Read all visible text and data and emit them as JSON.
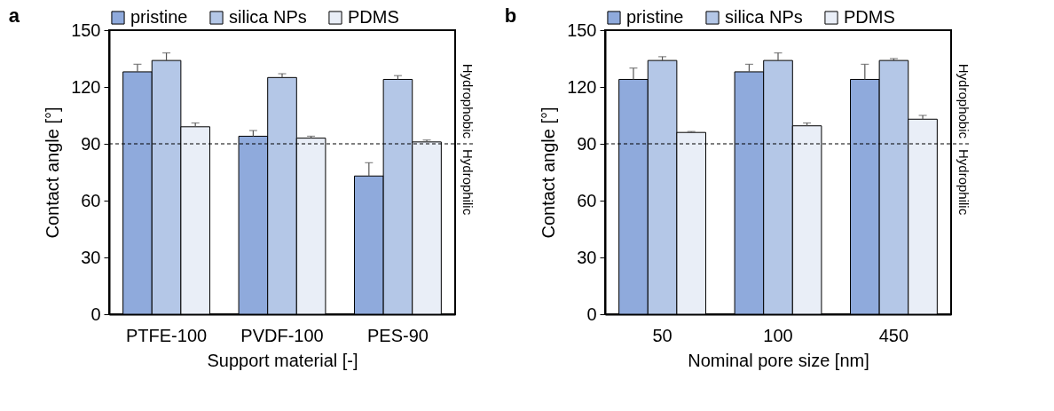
{
  "chart_data": [
    {
      "type": "bar",
      "title": "a",
      "xlabel": "Support material [-]",
      "ylabel": "Contact angle [°]",
      "categories": [
        "PTFE-100",
        "PVDF-100",
        "PES-90"
      ],
      "ylim": [
        0,
        150
      ],
      "yticks": [
        0,
        30,
        60,
        90,
        120,
        150
      ],
      "grid": false,
      "legend": "top",
      "series": [
        {
          "name": "pristine",
          "color": "#8faadc",
          "values": [
            128,
            94,
            73
          ],
          "errors": [
            [
              128,
              132
            ],
            [
              94,
              97
            ],
            [
              73,
              80
            ]
          ]
        },
        {
          "name": "silica NPs",
          "color": "#b4c7e7",
          "values": [
            134,
            125,
            124
          ],
          "errors": [
            [
              134,
              138
            ],
            [
              125,
              127
            ],
            [
              124,
              126
            ]
          ]
        },
        {
          "name": "PDMS",
          "color": "#e9eef7",
          "values": [
            99,
            93,
            91
          ],
          "errors": [
            [
              99,
              101
            ],
            [
              93,
              94
            ],
            [
              91,
              92
            ]
          ]
        }
      ],
      "ref_lines": [
        {
          "axis": "y",
          "value": 90,
          "line_style": "dashed",
          "color": "#000000"
        }
      ],
      "annotations": [
        "Hydrophobic",
        "Hydrophilic"
      ]
    },
    {
      "type": "bar",
      "title": "b",
      "xlabel": "Nominal pore size [nm]",
      "ylabel": "Contact angle [°]",
      "categories": [
        "50",
        "100",
        "450"
      ],
      "ylim": [
        0,
        150
      ],
      "yticks": [
        0,
        30,
        60,
        90,
        120,
        150
      ],
      "grid": false,
      "legend": "top",
      "series": [
        {
          "name": "pristine",
          "color": "#8faadc",
          "values": [
            124,
            128,
            124
          ],
          "errors": [
            [
              124,
              130
            ],
            [
              128,
              132
            ],
            [
              124,
              132
            ]
          ]
        },
        {
          "name": "silica NPs",
          "color": "#b4c7e7",
          "values": [
            134,
            134,
            134
          ],
          "errors": [
            [
              134,
              136
            ],
            [
              134,
              138
            ],
            [
              134,
              135
            ]
          ]
        },
        {
          "name": "PDMS",
          "color": "#e9eef7",
          "values": [
            96,
            99.5,
            103
          ],
          "errors": [
            [
              96,
              96.5
            ],
            [
              99.5,
              101
            ],
            [
              103,
              105
            ]
          ]
        }
      ],
      "ref_lines": [
        {
          "axis": "y",
          "value": 90,
          "line_style": "dashed",
          "color": "#000000"
        }
      ],
      "annotations": [
        "Hydrophobic",
        "Hydrophilic"
      ]
    }
  ]
}
